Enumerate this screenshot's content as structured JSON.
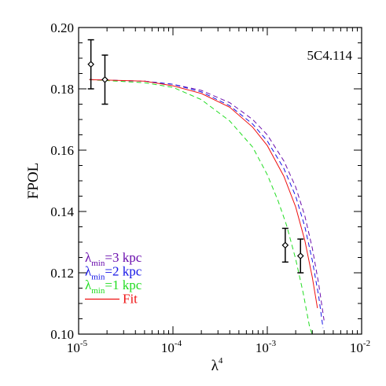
{
  "chart_data": {
    "type": "line",
    "xlabel": "λ",
    "xlabel_sup": "4",
    "ylabel": "FPOL",
    "x_scale": "log",
    "xlim": [
      1e-05,
      0.01
    ],
    "ylim": [
      0.1,
      0.2
    ],
    "x_tick_values": [
      1e-05,
      0.0001,
      0.001,
      0.01
    ],
    "x_tick_labels": [
      {
        "base": "10",
        "exp": "-5"
      },
      {
        "base": "10",
        "exp": "-4"
      },
      {
        "base": "10",
        "exp": "-3"
      },
      {
        "base": "10",
        "exp": "-2"
      }
    ],
    "y_ticks": [
      "0.10",
      "0.12",
      "0.14",
      "0.16",
      "0.18",
      "0.20"
    ],
    "annotation": "5C4.114",
    "grid": false,
    "legend_position": "bottom-left",
    "points": [
      {
        "x": 1.35e-05,
        "y": 0.188,
        "err": 0.008
      },
      {
        "x": 1.9e-05,
        "y": 0.183,
        "err": 0.008
      },
      {
        "x": 0.00155,
        "y": 0.129,
        "err": 0.0055
      },
      {
        "x": 0.00225,
        "y": 0.1255,
        "err": 0.0055
      }
    ],
    "series": [
      {
        "name": "=3 kpc",
        "symbol": "λ",
        "sub": "min",
        "color": "#6a0dad",
        "dash": "6,4",
        "x": [
          1.3e-05,
          5e-05,
          0.0001,
          0.0002,
          0.0004,
          0.0007,
          0.001,
          0.0015,
          0.002,
          0.0025,
          0.003,
          0.0035,
          0.004
        ],
        "y": [
          0.183,
          0.1825,
          0.1815,
          0.1795,
          0.1755,
          0.17,
          0.165,
          0.1565,
          0.148,
          0.1385,
          0.128,
          0.1165,
          0.1045
        ]
      },
      {
        "name": "=2 kpc",
        "symbol": "λ",
        "sub": "min",
        "color": "#1515e6",
        "dash": "6,4",
        "x": [
          1.3e-05,
          5e-05,
          0.0001,
          0.0002,
          0.0004,
          0.0007,
          0.001,
          0.0015,
          0.002,
          0.0025,
          0.003,
          0.0035,
          0.0039
        ],
        "y": [
          0.183,
          0.1825,
          0.1815,
          0.179,
          0.1745,
          0.1685,
          0.163,
          0.154,
          0.145,
          0.135,
          0.124,
          0.1125,
          0.102
        ]
      },
      {
        "name": "=1 kpc",
        "symbol": "λ",
        "sub": "min",
        "color": "#22dd22",
        "dash": "6,4",
        "x": [
          1.3e-05,
          5e-05,
          0.0001,
          0.0002,
          0.0004,
          0.0007,
          0.001,
          0.0013,
          0.0016,
          0.002,
          0.0024,
          0.0028,
          0.0031
        ],
        "y": [
          0.183,
          0.182,
          0.1805,
          0.1765,
          0.1695,
          0.161,
          0.152,
          0.1435,
          0.1355,
          0.1245,
          0.1135,
          0.1025,
          0.0985
        ]
      },
      {
        "name": "Fit",
        "color": "#ee1111",
        "dash": "",
        "x": [
          1.3e-05,
          5e-05,
          0.0001,
          0.0002,
          0.0004,
          0.0007,
          0.001,
          0.0015,
          0.002,
          0.0025,
          0.003,
          0.0034
        ],
        "y": [
          0.183,
          0.1825,
          0.181,
          0.1785,
          0.174,
          0.1675,
          0.1615,
          0.1515,
          0.1415,
          0.1305,
          0.1185,
          0.1085
        ]
      }
    ]
  }
}
